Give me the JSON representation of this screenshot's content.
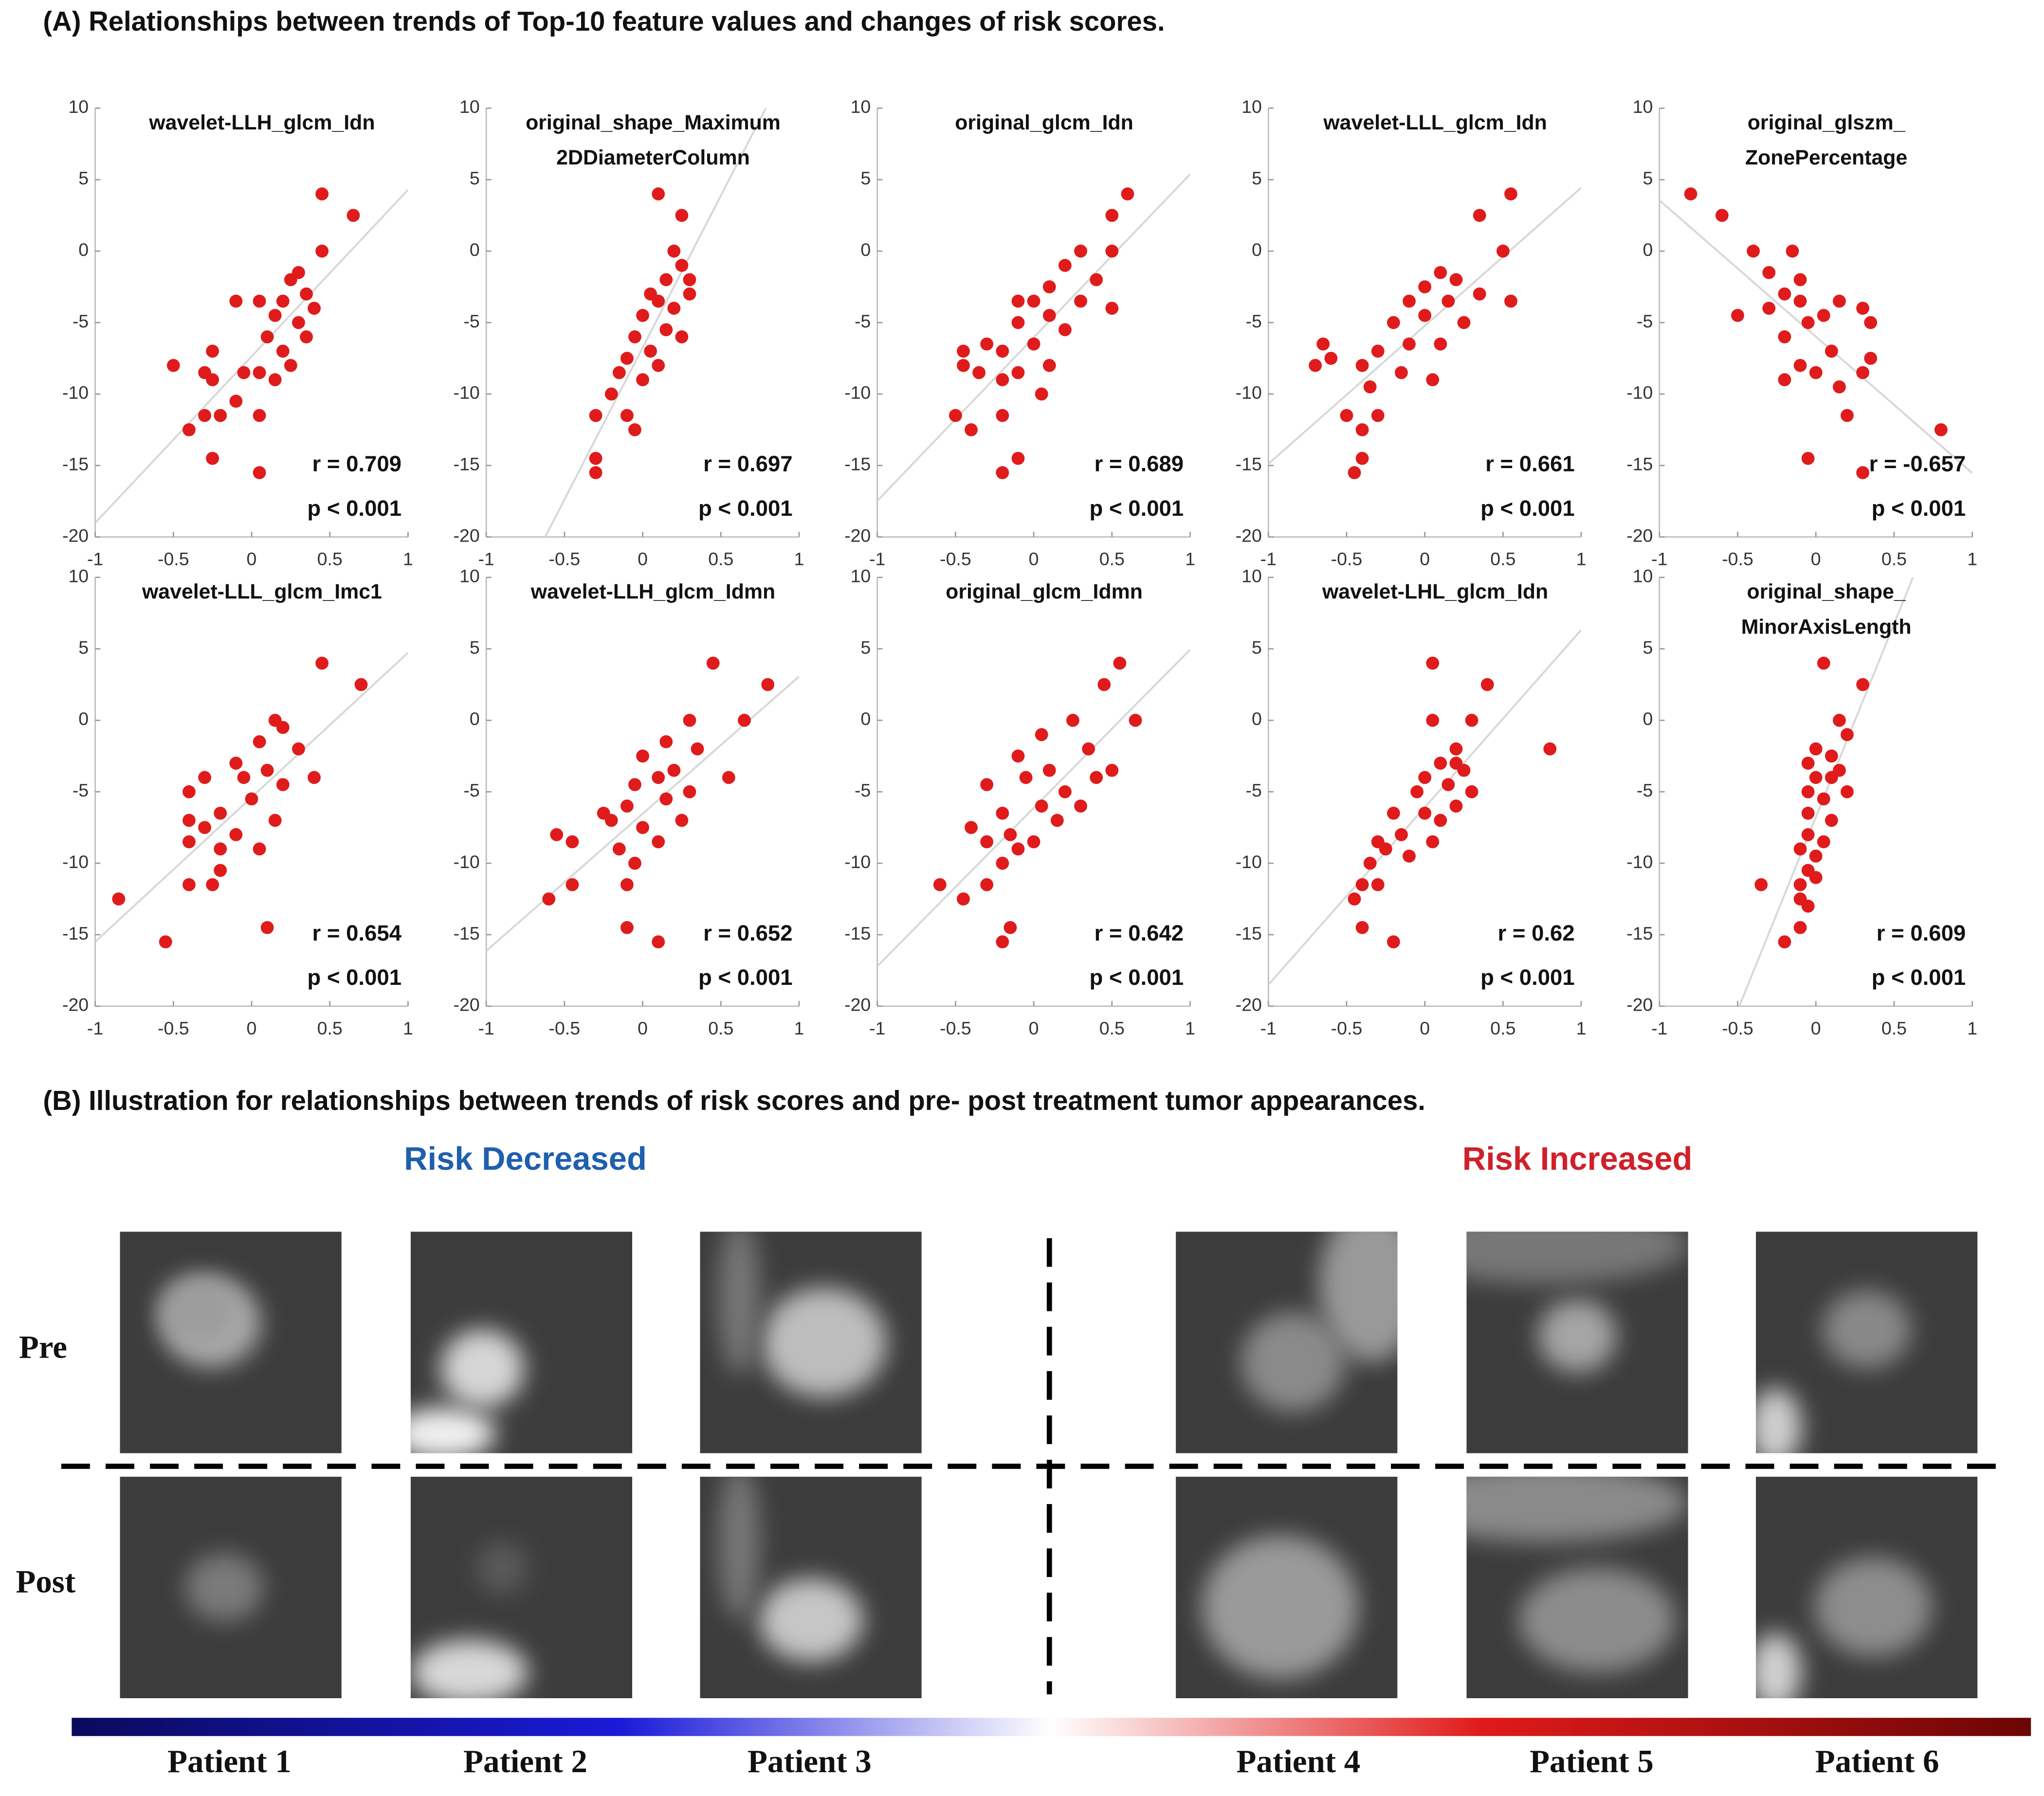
{
  "panel_a": {
    "title": "(A) Relationships between trends of Top-10 feature values and changes of risk scores."
  },
  "chart_data": [
    {
      "type": "scatter",
      "title": [
        "wavelet-LLH_glcm_Idn"
      ],
      "color": "#e01b1b",
      "xlim": [
        -1,
        1
      ],
      "ylim": [
        -20,
        10
      ],
      "xticks": [
        -1,
        -0.5,
        0,
        0.5,
        1
      ],
      "yticks": [
        -20,
        -15,
        -10,
        -5,
        0,
        5,
        10
      ],
      "annotations": [
        "r = 0.709",
        "p < 0.001"
      ],
      "x": [
        0.45,
        0.65,
        0.45,
        0.3,
        0.25,
        0.35,
        0.2,
        0.4,
        0.3,
        0.15,
        0.05,
        -0.1,
        0.1,
        0.2,
        0.35,
        0.25,
        0.15,
        0.05,
        -0.05,
        -0.25,
        -0.3,
        -0.25,
        -0.5,
        -0.1,
        -0.3,
        -0.2,
        0.05,
        -0.4,
        -0.25,
        0.05
      ],
      "y": [
        4,
        2.5,
        0,
        -1.5,
        -2,
        -3,
        -3.5,
        -4,
        -5,
        -4.5,
        -3.5,
        -3.5,
        -6,
        -7,
        -6,
        -8,
        -9,
        -8.5,
        -8.5,
        -7,
        -8.5,
        -9,
        -8,
        -10.5,
        -11.5,
        -11.5,
        -11.5,
        -12.5,
        -14.5,
        -15.5
      ]
    },
    {
      "type": "scatter",
      "title": [
        "original_shape_Maximum",
        "2DDiameterColumn"
      ],
      "color": "#e01b1b",
      "xlim": [
        -1,
        1
      ],
      "ylim": [
        -20,
        10
      ],
      "xticks": [
        -1,
        -0.5,
        0,
        0.5,
        1
      ],
      "yticks": [
        -20,
        -15,
        -10,
        -5,
        0,
        5,
        10
      ],
      "annotations": [
        "r = 0.697",
        "p < 0.001"
      ],
      "x": [
        0.1,
        0.25,
        0.2,
        0.25,
        0.15,
        0.3,
        0.1,
        0.2,
        0.05,
        0.0,
        0.15,
        -0.05,
        0.05,
        0.1,
        -0.1,
        -0.15,
        0.0,
        -0.2,
        -0.1,
        -0.3,
        -0.05,
        -0.3,
        -0.3,
        0.25,
        0.3
      ],
      "y": [
        4,
        2.5,
        0,
        -1,
        -2,
        -3,
        -3.5,
        -4,
        -3,
        -4.5,
        -5.5,
        -6,
        -7,
        -8,
        -7.5,
        -8.5,
        -9,
        -10,
        -11.5,
        -11.5,
        -12.5,
        -14.5,
        -15.5,
        -6,
        -2
      ]
    },
    {
      "type": "scatter",
      "title": [
        "original_glcm_Idn"
      ],
      "color": "#e01b1b",
      "xlim": [
        -1,
        1
      ],
      "ylim": [
        -20,
        10
      ],
      "xticks": [
        -1,
        -0.5,
        0,
        0.5,
        1
      ],
      "yticks": [
        -20,
        -15,
        -10,
        -5,
        0,
        5,
        10
      ],
      "annotations": [
        "r = 0.689",
        "p < 0.001"
      ],
      "x": [
        0.6,
        0.5,
        0.3,
        0.5,
        0.2,
        0.4,
        0.1,
        0.0,
        -0.1,
        0.3,
        0.5,
        0.1,
        -0.1,
        0.2,
        -0.3,
        0.0,
        -0.45,
        -0.2,
        -0.45,
        -0.35,
        -0.2,
        -0.1,
        0.05,
        -0.5,
        -0.2,
        -0.4,
        -0.1,
        -0.2,
        0.1
      ],
      "y": [
        4,
        2.5,
        0,
        0,
        -1,
        -2,
        -2.5,
        -3.5,
        -3.5,
        -3.5,
        -4,
        -4.5,
        -5,
        -5.5,
        -6.5,
        -6.5,
        -7,
        -7,
        -8,
        -8.5,
        -9,
        -8.5,
        -10,
        -11.5,
        -11.5,
        -12.5,
        -14.5,
        -15.5,
        -8
      ]
    },
    {
      "type": "scatter",
      "title": [
        "wavelet-LLL_glcm_Idn"
      ],
      "color": "#e01b1b",
      "xlim": [
        -1,
        1
      ],
      "ylim": [
        -20,
        10
      ],
      "xticks": [
        -1,
        -0.5,
        0,
        0.5,
        1
      ],
      "yticks": [
        -20,
        -15,
        -10,
        -5,
        0,
        5,
        10
      ],
      "annotations": [
        "r = 0.661",
        "p < 0.001"
      ],
      "x": [
        0.55,
        0.35,
        0.5,
        0.1,
        0.2,
        0.0,
        -0.1,
        0.15,
        0.35,
        0.55,
        0.0,
        -0.2,
        0.25,
        -0.1,
        0.1,
        -0.3,
        -0.65,
        -0.7,
        -0.4,
        -0.15,
        0.05,
        -0.35,
        -0.5,
        -0.3,
        -0.4,
        -0.4,
        -0.45,
        -0.6
      ],
      "y": [
        4,
        2.5,
        0,
        -1.5,
        -2,
        -2.5,
        -3.5,
        -3.5,
        -3,
        -3.5,
        -4.5,
        -5,
        -5,
        -6.5,
        -6.5,
        -7,
        -6.5,
        -8,
        -8,
        -8.5,
        -9,
        -9.5,
        -11.5,
        -11.5,
        -12.5,
        -14.5,
        -15.5,
        -7.5
      ]
    },
    {
      "type": "scatter",
      "title": [
        "original_glszm_",
        "ZonePercentage"
      ],
      "color": "#e01b1b",
      "xlim": [
        -1,
        1
      ],
      "ylim": [
        -20,
        10
      ],
      "xticks": [
        -1,
        -0.5,
        0,
        0.5,
        1
      ],
      "yticks": [
        -20,
        -15,
        -10,
        -5,
        0,
        5,
        10
      ],
      "annotations": [
        "r = -0.657",
        "p < 0.001"
      ],
      "x": [
        -0.8,
        -0.6,
        -0.4,
        -0.15,
        -0.3,
        -0.1,
        -0.2,
        -0.1,
        0.15,
        -0.3,
        0.05,
        -0.5,
        -0.05,
        0.35,
        0.3,
        -0.2,
        0.1,
        0.35,
        -0.1,
        0.0,
        0.3,
        -0.2,
        0.15,
        0.2,
        0.8,
        -0.05,
        0.3,
        0.1
      ],
      "y": [
        4,
        2.5,
        0,
        0,
        -1.5,
        -2,
        -3,
        -3.5,
        -3.5,
        -4,
        -4.5,
        -4.5,
        -5,
        -5,
        -4,
        -6,
        -7,
        -7.5,
        -8,
        -8.5,
        -8.5,
        -9,
        -9.5,
        -11.5,
        -12.5,
        -14.5,
        -15.5,
        -7
      ]
    },
    {
      "type": "scatter",
      "title": [
        "wavelet-LLL_glcm_Imc1"
      ],
      "color": "#e01b1b",
      "xlim": [
        -1,
        1
      ],
      "ylim": [
        -20,
        10
      ],
      "xticks": [
        -1,
        -0.5,
        0,
        0.5,
        1
      ],
      "yticks": [
        -20,
        -15,
        -10,
        -5,
        0,
        5,
        10
      ],
      "annotations": [
        "r = 0.654",
        "p < 0.001"
      ],
      "x": [
        0.45,
        0.7,
        0.15,
        0.2,
        0.05,
        0.3,
        -0.1,
        0.1,
        -0.05,
        0.2,
        0.4,
        -0.3,
        -0.4,
        0.0,
        -0.2,
        0.15,
        -0.4,
        -0.3,
        -0.1,
        -0.4,
        0.05,
        -0.2,
        -0.4,
        -0.25,
        -0.85,
        0.1,
        -0.55,
        -0.2
      ],
      "y": [
        4,
        2.5,
        0,
        -0.5,
        -1.5,
        -2,
        -3,
        -3.5,
        -4,
        -4.5,
        -4,
        -4,
        -5,
        -5.5,
        -6.5,
        -7,
        -7,
        -7.5,
        -8,
        -8.5,
        -9,
        -10.5,
        -11.5,
        -11.5,
        -12.5,
        -14.5,
        -15.5,
        -9
      ]
    },
    {
      "type": "scatter",
      "title": [
        "wavelet-LLH_glcm_Idmn"
      ],
      "color": "#e01b1b",
      "xlim": [
        -1,
        1
      ],
      "ylim": [
        -20,
        10
      ],
      "xticks": [
        -1,
        -0.5,
        0,
        0.5,
        1
      ],
      "yticks": [
        -20,
        -15,
        -10,
        -5,
        0,
        5,
        10
      ],
      "annotations": [
        "r = 0.652",
        "p < 0.001"
      ],
      "x": [
        0.45,
        0.8,
        0.3,
        0.65,
        0.15,
        0.35,
        0.0,
        0.2,
        0.1,
        -0.05,
        0.55,
        0.3,
        0.15,
        -0.1,
        0.25,
        -0.2,
        0.0,
        0.1,
        -0.15,
        -0.55,
        -0.45,
        -0.05,
        -0.1,
        -0.45,
        -0.6,
        -0.1,
        0.1,
        -0.25
      ],
      "y": [
        4,
        2.5,
        0,
        0,
        -1.5,
        -2,
        -2.5,
        -3.5,
        -4,
        -4.5,
        -4,
        -5,
        -5.5,
        -6,
        -7,
        -7,
        -7.5,
        -8.5,
        -9,
        -8,
        -8.5,
        -10,
        -11.5,
        -11.5,
        -12.5,
        -14.5,
        -15.5,
        -6.5
      ]
    },
    {
      "type": "scatter",
      "title": [
        "original_glcm_Idmn"
      ],
      "color": "#e01b1b",
      "xlim": [
        -1,
        1
      ],
      "ylim": [
        -20,
        10
      ],
      "xticks": [
        -1,
        -0.5,
        0,
        0.5,
        1
      ],
      "yticks": [
        -20,
        -15,
        -10,
        -5,
        0,
        5,
        10
      ],
      "annotations": [
        "r = 0.642",
        "p < 0.001"
      ],
      "x": [
        0.55,
        0.45,
        0.65,
        0.25,
        0.05,
        0.35,
        -0.1,
        0.1,
        0.5,
        0.4,
        -0.05,
        0.2,
        -0.3,
        0.05,
        -0.2,
        0.15,
        -0.4,
        -0.15,
        0.0,
        -0.3,
        -0.1,
        -0.2,
        -0.6,
        -0.3,
        -0.45,
        -0.15,
        -0.2,
        0.3
      ],
      "y": [
        4,
        2.5,
        0,
        0,
        -1,
        -2,
        -2.5,
        -3.5,
        -3.5,
        -4,
        -4,
        -5,
        -4.5,
        -6,
        -6.5,
        -7,
        -7.5,
        -8,
        -8.5,
        -8.5,
        -9,
        -10,
        -11.5,
        -11.5,
        -12.5,
        -14.5,
        -15.5,
        -6
      ]
    },
    {
      "type": "scatter",
      "title": [
        "wavelet-LHL_glcm_Idn"
      ],
      "color": "#e01b1b",
      "xlim": [
        -1,
        1
      ],
      "ylim": [
        -20,
        10
      ],
      "xticks": [
        -1,
        -0.5,
        0,
        0.5,
        1
      ],
      "yticks": [
        -20,
        -15,
        -10,
        -5,
        0,
        5,
        10
      ],
      "annotations": [
        "r = 0.62",
        "p < 0.001"
      ],
      "x": [
        0.05,
        0.4,
        0.05,
        0.3,
        0.8,
        0.2,
        0.1,
        0.25,
        0.0,
        0.15,
        -0.05,
        0.3,
        0.2,
        0.0,
        -0.2,
        0.1,
        -0.15,
        0.05,
        -0.3,
        -0.25,
        -0.1,
        -0.35,
        -0.4,
        -0.3,
        -0.45,
        -0.4,
        -0.2,
        0.2
      ],
      "y": [
        4,
        2.5,
        0,
        0,
        -2,
        -2,
        -3,
        -3.5,
        -4,
        -4.5,
        -5,
        -5,
        -6,
        -6.5,
        -6.5,
        -7,
        -8,
        -8.5,
        -8.5,
        -9,
        -9.5,
        -10,
        -11.5,
        -11.5,
        -12.5,
        -14.5,
        -15.5,
        -3
      ]
    },
    {
      "type": "scatter",
      "title": [
        "original_shape_",
        "MinorAxisLength"
      ],
      "color": "#e01b1b",
      "xlim": [
        -1,
        1
      ],
      "ylim": [
        -20,
        10
      ],
      "xticks": [
        -1,
        -0.5,
        0,
        0.5,
        1
      ],
      "yticks": [
        -20,
        -15,
        -10,
        -5,
        0,
        5,
        10
      ],
      "annotations": [
        "r = 0.609",
        "p < 0.001"
      ],
      "x": [
        0.05,
        0.3,
        0.15,
        0.2,
        0.0,
        0.1,
        -0.05,
        0.15,
        0.0,
        -0.05,
        0.2,
        0.05,
        -0.05,
        0.1,
        -0.05,
        0.05,
        -0.1,
        0.0,
        -0.05,
        0.0,
        -0.35,
        -0.1,
        -0.1,
        -0.05,
        -0.1,
        -0.2,
        0.1
      ],
      "y": [
        4,
        2.5,
        0,
        -1,
        -2,
        -2.5,
        -3,
        -3.5,
        -4,
        -5,
        -5,
        -5.5,
        -6.5,
        -7,
        -8,
        -8.5,
        -9,
        -9.5,
        -10.5,
        -11,
        -11.5,
        -11.5,
        -12.5,
        -13,
        -14.5,
        -15.5,
        -4
      ]
    }
  ],
  "panel_b": {
    "title": "(B) Illustration for relationships between trends of risk scores and pre- post treatment tumor appearances.",
    "groups": [
      "Risk Decreased",
      "Risk Increased"
    ],
    "rows": [
      "Pre",
      "Post"
    ],
    "patients": [
      "Patient 1",
      "Patient 2",
      "Patient 3",
      "Patient 4",
      "Patient 5",
      "Patient 6"
    ]
  }
}
